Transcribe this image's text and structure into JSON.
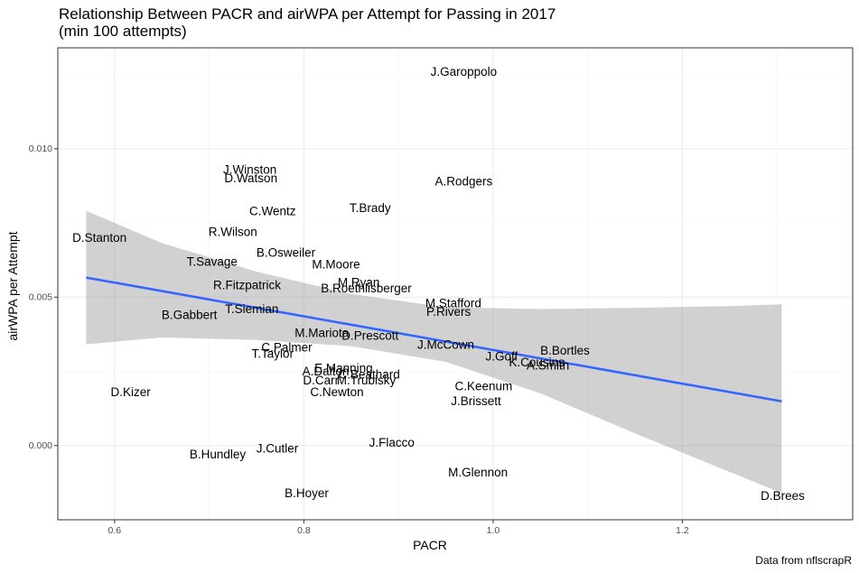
{
  "chart_data": {
    "type": "scatter",
    "title": "Relationship Between PACR and airWPA per Attempt for Passing in 2017",
    "subtitle": "(min 100 attempts)",
    "xlabel": "PACR",
    "ylabel": "airWPA per Attempt",
    "caption": "Data from nflscrapR",
    "xlim": [
      0.54,
      1.38
    ],
    "ylim": [
      -0.0025,
      0.0134
    ],
    "x_ticks": [
      {
        "value": 0.6,
        "label": "0.6"
      },
      {
        "value": 0.8,
        "label": "0.8"
      },
      {
        "value": 1.0,
        "label": "1.0"
      },
      {
        "value": 1.2,
        "label": "1.2"
      }
    ],
    "y_ticks": [
      {
        "value": 0.0,
        "label": "0.000"
      },
      {
        "value": 0.005,
        "label": "0.005"
      },
      {
        "value": 0.01,
        "label": "0.010"
      }
    ],
    "grid": true,
    "background": "#ffffff",
    "colors": {
      "grid_major": "#ebebeb",
      "grid_minor": "#f5f5f5",
      "panel_border": "#333333",
      "fit_line": "#3366ff",
      "confidence_band": "#999999"
    },
    "points": [
      {
        "label": "J.Garoppolo",
        "x": 0.969,
        "y": 0.0126
      },
      {
        "label": "J.Winston",
        "x": 0.743,
        "y": 0.0093
      },
      {
        "label": "D.Watson",
        "x": 0.744,
        "y": 0.009
      },
      {
        "label": "A.Rodgers",
        "x": 0.969,
        "y": 0.0089
      },
      {
        "label": "C.Wentz",
        "x": 0.767,
        "y": 0.0079
      },
      {
        "label": "T.Brady",
        "x": 0.87,
        "y": 0.008
      },
      {
        "label": "D.Stanton",
        "x": 0.584,
        "y": 0.007
      },
      {
        "label": "R.Wilson",
        "x": 0.725,
        "y": 0.0072
      },
      {
        "label": "B.Osweiler",
        "x": 0.781,
        "y": 0.0065
      },
      {
        "label": "T.Savage",
        "x": 0.703,
        "y": 0.0062
      },
      {
        "label": "M.Moore",
        "x": 0.834,
        "y": 0.0061
      },
      {
        "label": "R.Fitzpatrick",
        "x": 0.74,
        "y": 0.0054
      },
      {
        "label": "M.Ryan",
        "x": 0.858,
        "y": 0.0055
      },
      {
        "label": "B.Roethlisberger",
        "x": 0.866,
        "y": 0.0053
      },
      {
        "label": "M.Stafford",
        "x": 0.958,
        "y": 0.0048
      },
      {
        "label": "T.Siemian",
        "x": 0.745,
        "y": 0.0046
      },
      {
        "label": "B.Gabbert",
        "x": 0.679,
        "y": 0.0044
      },
      {
        "label": "P.Rivers",
        "x": 0.953,
        "y": 0.0045
      },
      {
        "label": "M.Mariota",
        "x": 0.819,
        "y": 0.0038
      },
      {
        "label": "D.Prescott",
        "x": 0.87,
        "y": 0.0037
      },
      {
        "label": "J.McCown",
        "x": 0.95,
        "y": 0.0034
      },
      {
        "label": "C.Palmer",
        "x": 0.782,
        "y": 0.0033
      },
      {
        "label": "T.Taylor",
        "x": 0.767,
        "y": 0.0031
      },
      {
        "label": "B.Bortles",
        "x": 1.076,
        "y": 0.0032
      },
      {
        "label": "J.Goff",
        "x": 1.009,
        "y": 0.003
      },
      {
        "label": "K.Cousins",
        "x": 1.046,
        "y": 0.0028
      },
      {
        "label": "A.Smith",
        "x": 1.058,
        "y": 0.0027
      },
      {
        "label": "E.Manning",
        "x": 0.842,
        "y": 0.0026
      },
      {
        "label": "A.Dalton",
        "x": 0.823,
        "y": 0.0025
      },
      {
        "label": "C.Beathard",
        "x": 0.869,
        "y": 0.0024
      },
      {
        "label": "M.Trubisky",
        "x": 0.866,
        "y": 0.0022
      },
      {
        "label": "D.Carr",
        "x": 0.818,
        "y": 0.0022
      },
      {
        "label": "C.Newton",
        "x": 0.835,
        "y": 0.0018
      },
      {
        "label": "C.Keenum",
        "x": 0.99,
        "y": 0.002
      },
      {
        "label": "D.Kizer",
        "x": 0.617,
        "y": 0.0018
      },
      {
        "label": "J.Brissett",
        "x": 0.982,
        "y": 0.0015
      },
      {
        "label": "J.Flacco",
        "x": 0.893,
        "y": 0.0001
      },
      {
        "label": "J.Cutler",
        "x": 0.772,
        "y": -0.0001
      },
      {
        "label": "B.Hundley",
        "x": 0.709,
        "y": -0.0003
      },
      {
        "label": "M.Glennon",
        "x": 0.984,
        "y": -0.0009
      },
      {
        "label": "B.Hoyer",
        "x": 0.803,
        "y": -0.0016
      },
      {
        "label": "D.Brees",
        "x": 1.306,
        "y": -0.0017
      }
    ],
    "fit": {
      "method": "lm",
      "x": [
        0.57,
        1.305
      ],
      "y": [
        0.00566,
        0.00149
      ]
    },
    "confidence_band": [
      {
        "x": 0.57,
        "lower": 0.00341,
        "upper": 0.00791
      },
      {
        "x": 0.65,
        "lower": 0.00364,
        "upper": 0.00682
      },
      {
        "x": 0.75,
        "lower": 0.00356,
        "upper": 0.00586
      },
      {
        "x": 0.85,
        "lower": 0.00335,
        "upper": 0.00511
      },
      {
        "x": 0.95,
        "lower": 0.00282,
        "upper": 0.00466
      },
      {
        "x": 1.05,
        "lower": 0.00176,
        "upper": 0.0046
      },
      {
        "x": 1.15,
        "lower": 0.00041,
        "upper": 0.00464
      },
      {
        "x": 1.25,
        "lower": -0.00089,
        "upper": 0.0047
      },
      {
        "x": 1.305,
        "lower": -0.0016,
        "upper": 0.00476
      }
    ]
  }
}
